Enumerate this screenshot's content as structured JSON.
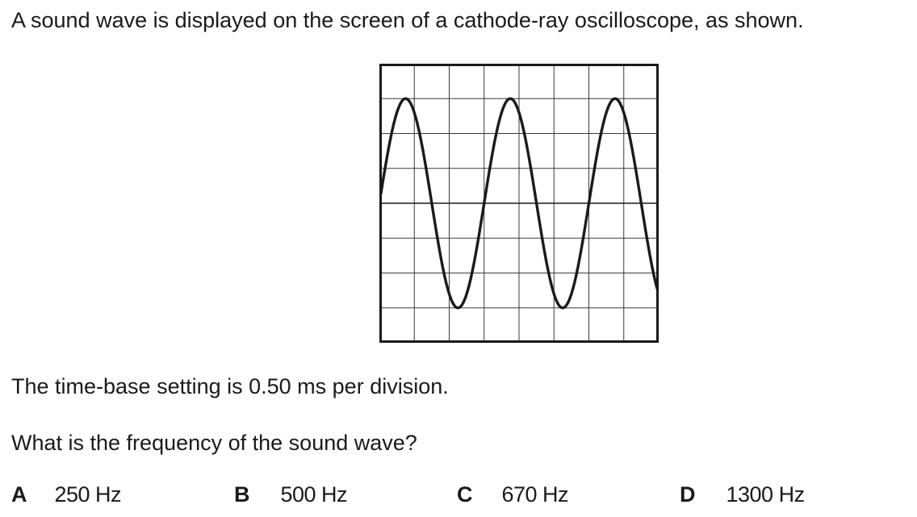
{
  "question": {
    "intro": "A sound wave is displayed on the screen of a cathode-ray oscilloscope, as shown.",
    "time_base": "The time-base setting is 0.50 ms per division.",
    "prompt": "What is the frequency of the sound wave?"
  },
  "oscilloscope": {
    "grid_divisions_x": 8,
    "grid_divisions_y": 8,
    "waveform": {
      "type": "sine",
      "divisions_per_cycle": 3,
      "amplitude_divisions": 3,
      "first_peak_at_division": 0.75
    }
  },
  "options": [
    {
      "letter": "A",
      "value": "250 Hz"
    },
    {
      "letter": "B",
      "value": "500 Hz"
    },
    {
      "letter": "C",
      "value": "670 Hz"
    },
    {
      "letter": "D",
      "value": "1300 Hz"
    }
  ]
}
